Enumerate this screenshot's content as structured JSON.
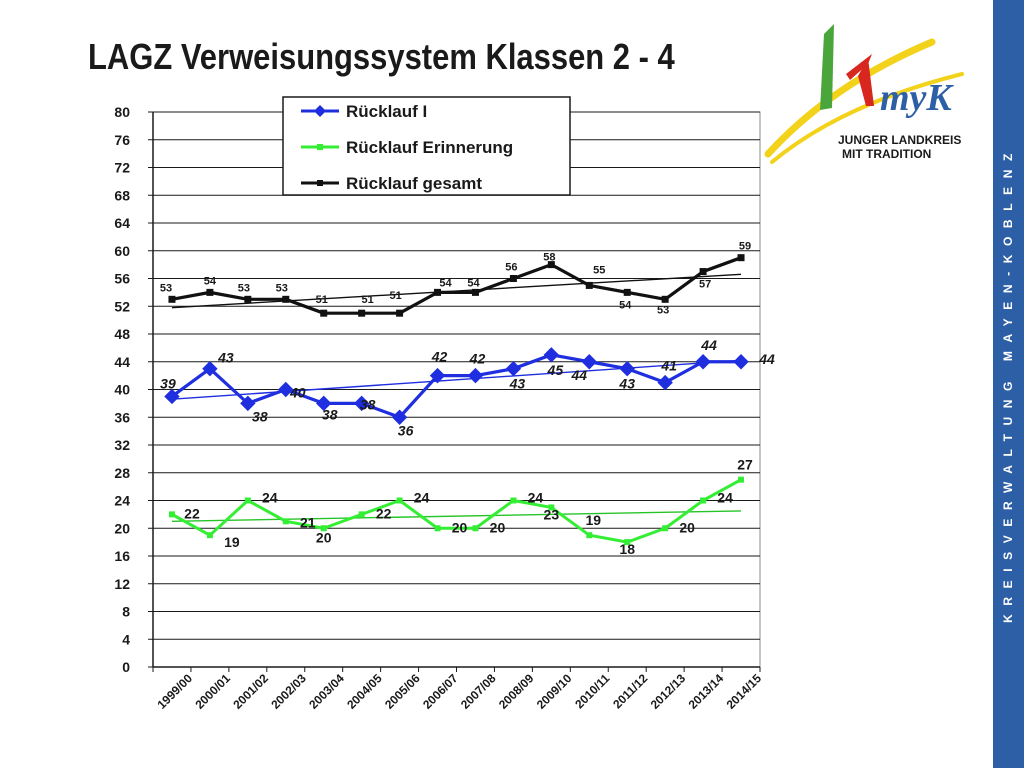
{
  "slide": {
    "title": "LAGZ  Verweisungssystem Klassen 2 - 4",
    "side_band_text": "KREISVERWALTUNG MAYEN-KOBLENZ",
    "logo": {
      "mark": "myK",
      "line1": "JUNGER LANDKREIS",
      "line2": "MIT TRADITION"
    }
  },
  "colors": {
    "band": "#2d5fa6",
    "series_blue": "#1f2fe0",
    "series_green": "#33ee33",
    "series_black": "#111111"
  },
  "chart_data": {
    "type": "line",
    "categories": [
      "1999/00",
      "2000/01",
      "2001/02",
      "2002/03",
      "2003/04",
      "2004/05",
      "2005/06",
      "2006/07",
      "2007/08",
      "2008/09",
      "2009/10",
      "2010/11",
      "2011/12",
      "2012/13",
      "2013/14",
      "2014/15"
    ],
    "ylim": [
      0,
      80
    ],
    "yticks": [
      0,
      4,
      8,
      12,
      16,
      20,
      24,
      28,
      32,
      36,
      40,
      44,
      48,
      52,
      56,
      60,
      64,
      68,
      72,
      76,
      80
    ],
    "grid": true,
    "legend_position": "top-center",
    "series": [
      {
        "name": "Rücklauf I",
        "color": "#1f2fe0",
        "marker": "diamond",
        "values": [
          39,
          43,
          38,
          40,
          38,
          38,
          36,
          42,
          42,
          43,
          45,
          44,
          43,
          41,
          44,
          44
        ],
        "labels": [
          "39",
          "43",
          "38",
          "40",
          "38",
          "38",
          "36",
          "42",
          "42",
          "43",
          "45",
          "44",
          "43",
          "41",
          "44",
          "44"
        ],
        "trend": [
          38.6,
          44.2
        ]
      },
      {
        "name": "Rücklauf Erinnerung",
        "color": "#33ee33",
        "marker": "square",
        "values": [
          22,
          19,
          24,
          21,
          20,
          22,
          24,
          20,
          20,
          24,
          23,
          19,
          18,
          20,
          24,
          27
        ],
        "labels": [
          "22",
          "19",
          "24",
          "21",
          "20",
          "22",
          "24",
          "20",
          "20",
          "24",
          "23",
          "19",
          "18",
          "20",
          "24",
          "27"
        ],
        "trend": [
          21.0,
          22.5
        ]
      },
      {
        "name": "Rücklauf gesamt",
        "color": "#111111",
        "marker": "square",
        "values": [
          53,
          54,
          53,
          53,
          51,
          51,
          51,
          54,
          54,
          56,
          58,
          55,
          54,
          53,
          57,
          59
        ],
        "labels": [
          "53",
          "54",
          "53",
          "53",
          "51",
          "51",
          "51",
          "54",
          "54",
          "56",
          "58",
          "55",
          "54",
          "53",
          "57",
          "59"
        ],
        "trend": [
          51.8,
          56.6
        ]
      }
    ]
  }
}
